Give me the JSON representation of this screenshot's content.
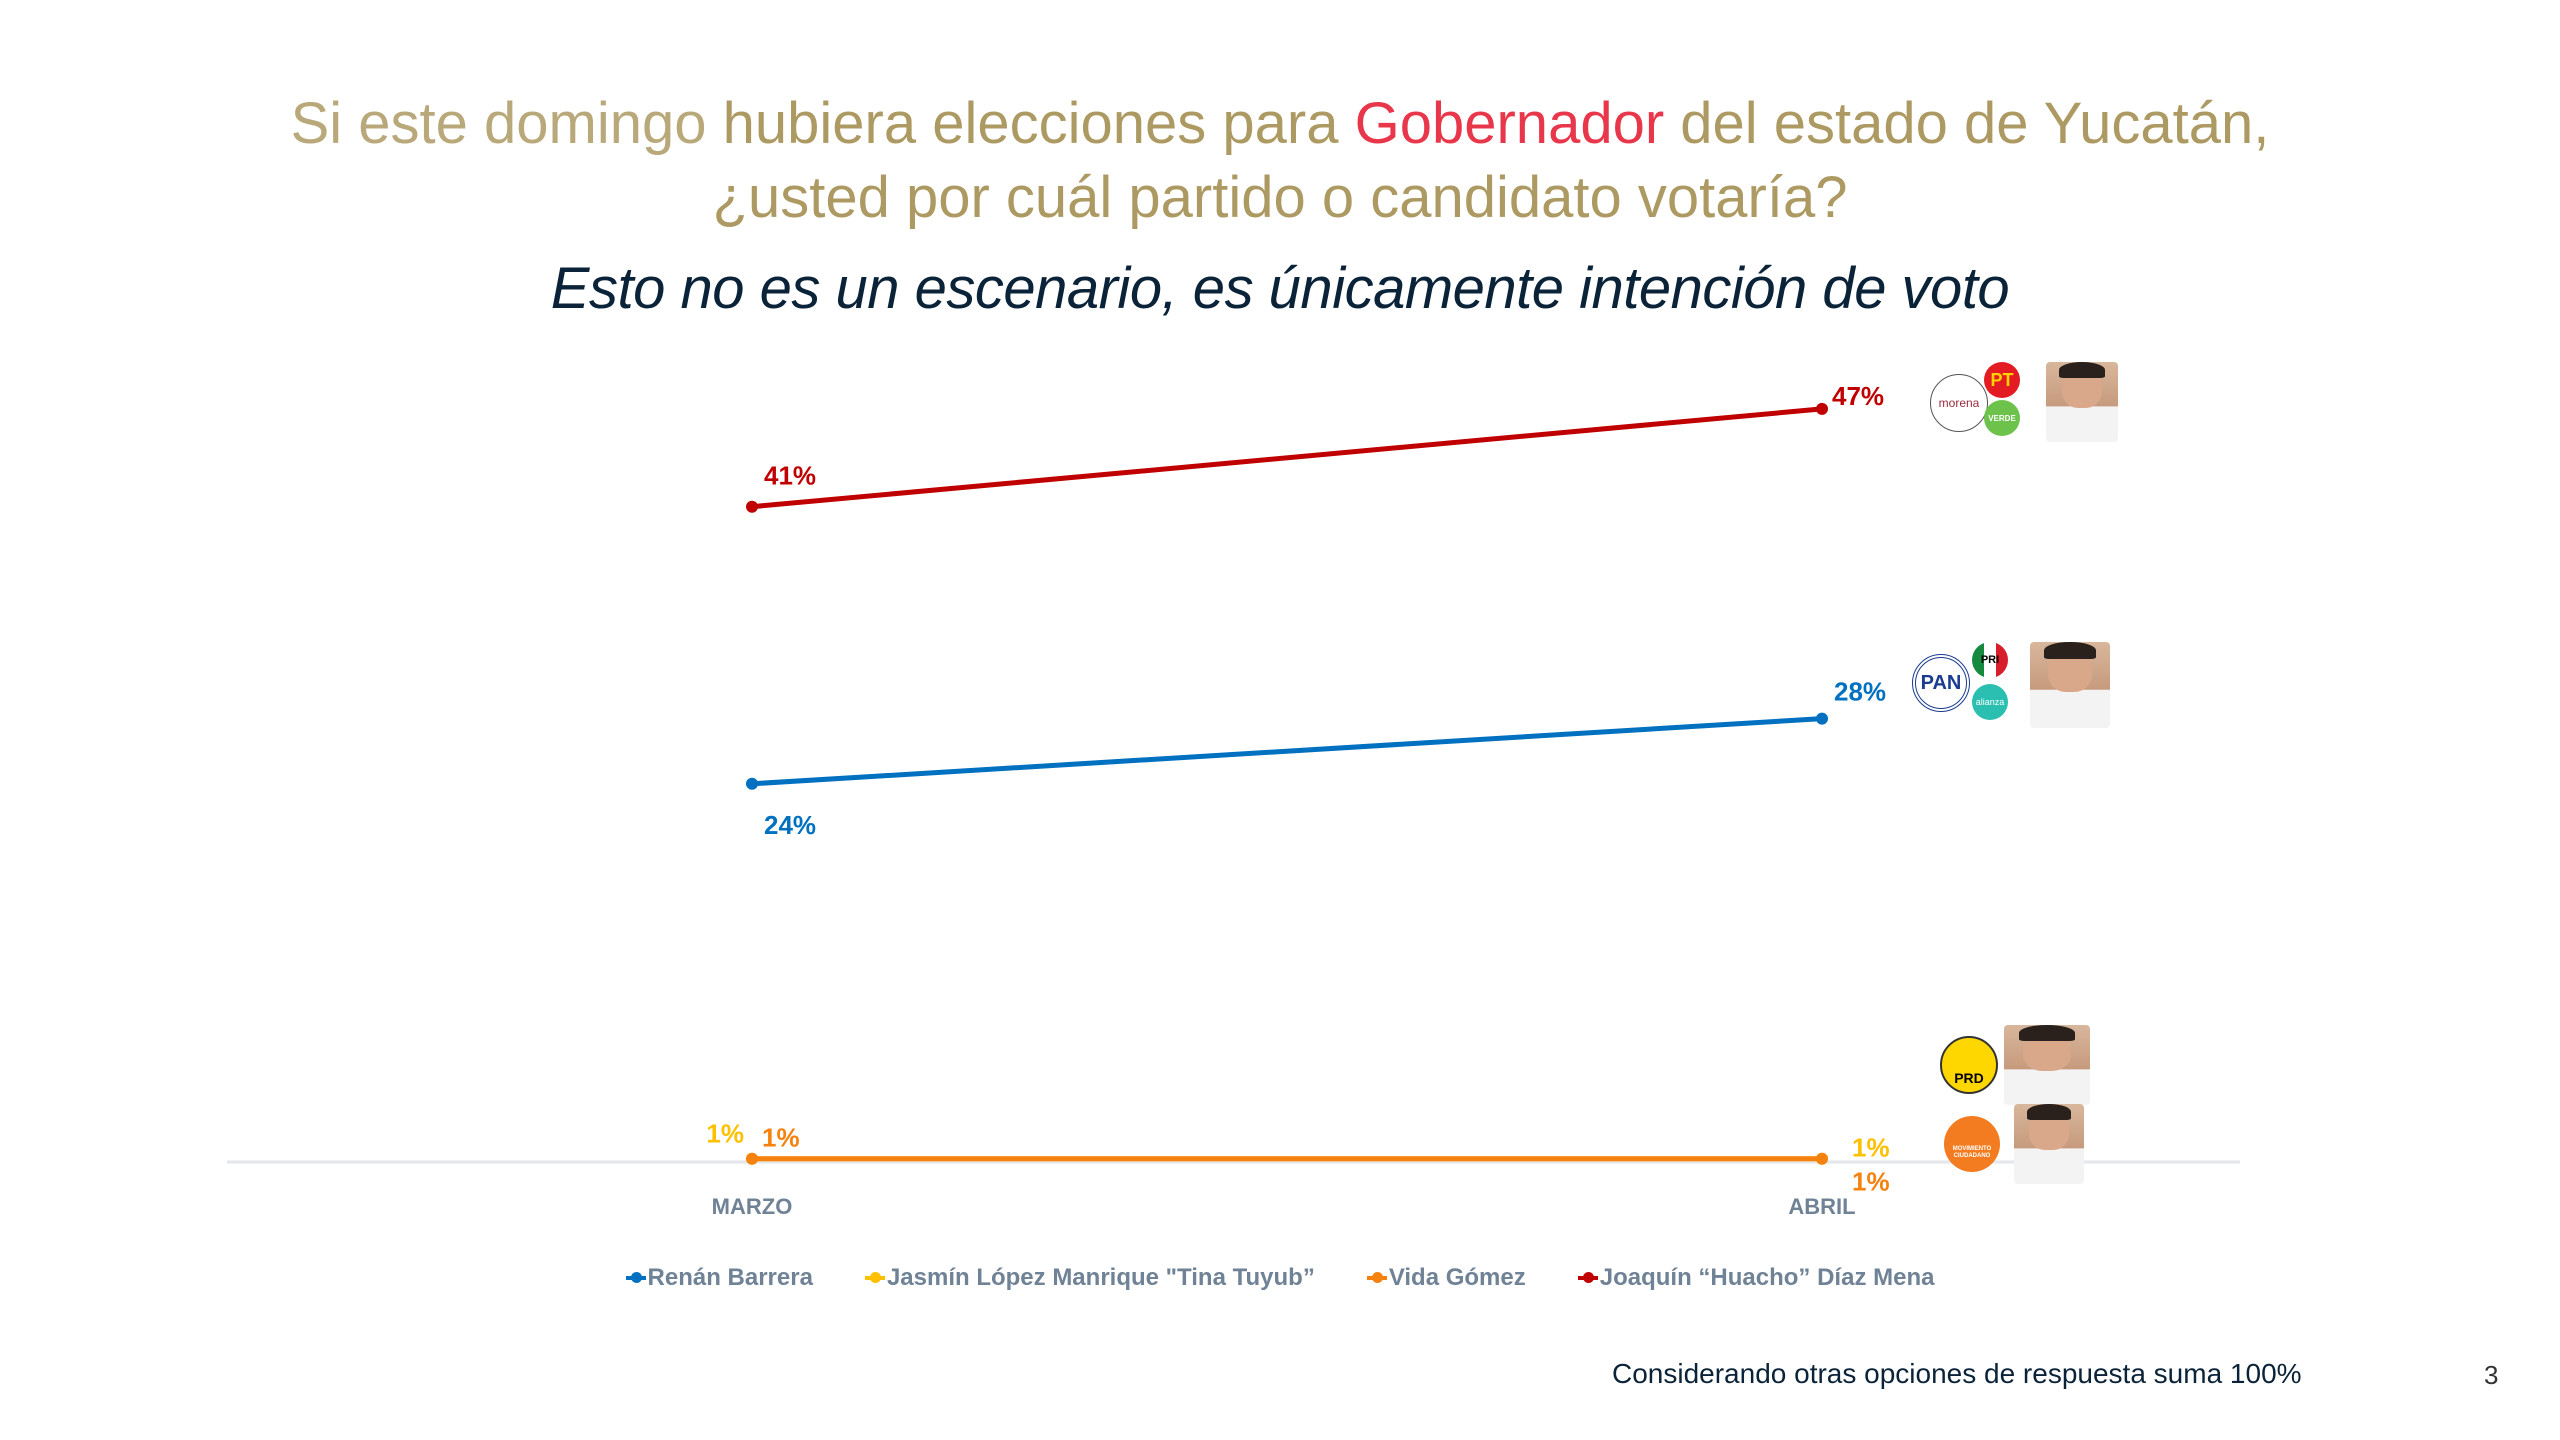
{
  "title": {
    "line1_light": "Si este domingo ",
    "line1_bold": "hubiera elecciones para ",
    "line1_accent": "Gobernador",
    "line1_rest": " del estado de Yucatán,",
    "line2": "¿usted por cuál partido o candidato votaría?"
  },
  "subtitle": "Esto no es un escenario, es únicamente intención de voto",
  "footnote": "Considerando otras opciones de respuesta suma 100%",
  "page_number": "3",
  "logos": {
    "morena": "morena",
    "pt": "PT",
    "verde": "VERDE",
    "pan": "PAN",
    "pri": "PRI",
    "alianza": "alianza",
    "prd": "PRD",
    "mc": "MOVIMIENTO CIUDADANO"
  },
  "chart_data": {
    "type": "line",
    "title": "Si este domingo hubiera elecciones para Gobernador del estado de Yucatán, ¿usted por cuál partido o candidato votaría?",
    "subtitle": "Esto no es un escenario, es únicamente intención de voto",
    "categories": [
      "MARZO",
      "ABRIL"
    ],
    "xlabel": "",
    "ylabel": "",
    "unit": "%",
    "grid": false,
    "legend_position": "bottom",
    "series": [
      {
        "name": "Renán Barrera",
        "color": "#0070c0",
        "values": [
          24,
          28
        ],
        "labels": [
          "24%",
          "28%"
        ]
      },
      {
        "name": "Jasmín López Manrique \"Tina Tuyub”",
        "color": "#ffc000",
        "values": [
          1,
          1
        ],
        "labels": [
          "1%",
          "1%"
        ]
      },
      {
        "name": "Vida Gómez",
        "color": "#f5820f",
        "values": [
          1,
          1
        ],
        "labels": [
          "1%",
          "1%"
        ]
      },
      {
        "name": "Joaquín “Huacho” Díaz Mena",
        "color": "#c00000",
        "values": [
          41,
          47
        ],
        "labels": [
          "41%",
          "47%"
        ]
      }
    ]
  }
}
